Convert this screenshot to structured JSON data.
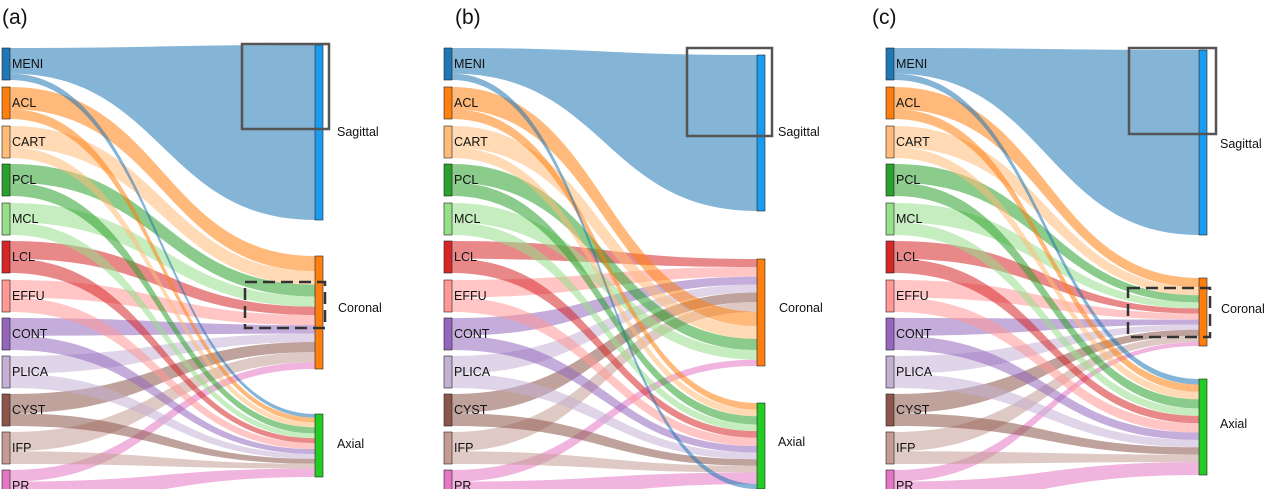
{
  "figure": {
    "panels": [
      {
        "letter": "(a)",
        "sources": [
          "MENI",
          "ACL",
          "CART",
          "PCL",
          "MCL",
          "LCL",
          "EFFU",
          "CONT",
          "PLICA",
          "CYST",
          "IFP",
          "PR"
        ],
        "targets": [
          "Sagittal",
          "Coronal",
          "Axial"
        ]
      },
      {
        "letter": "(b)",
        "sources": [
          "MENI",
          "ACL",
          "CART",
          "PCL",
          "MCL",
          "LCL",
          "EFFU",
          "CONT",
          "PLICA",
          "CYST",
          "IFP",
          "PR"
        ],
        "targets": [
          "Sagittal",
          "Coronal",
          "Axial"
        ]
      },
      {
        "letter": "(c)",
        "sources": [
          "MENI",
          "ACL",
          "CART",
          "PCL",
          "MCL",
          "LCL",
          "EFFU",
          "CONT",
          "PLICA",
          "CYST",
          "IFP",
          "PR"
        ],
        "targets": [
          "Sagittal",
          "Coronal",
          "Axial"
        ]
      }
    ]
  },
  "colors": {
    "MENI": "#1f77b4",
    "ACL": "#ff7f0e",
    "CART": "#ffbb78",
    "PCL": "#2ca02c",
    "MCL": "#98df8a",
    "LCL": "#d62728",
    "EFFU": "#ff9896",
    "CONT": "#9467bd",
    "PLICA": "#c5b0d5",
    "CYST": "#8c564b",
    "IFP": "#c49c94",
    "PR": "#e377c2",
    "Sagittal": "#1a9cf0",
    "Coronal": "#ff7f0e",
    "Axial": "#22cc22"
  }
}
